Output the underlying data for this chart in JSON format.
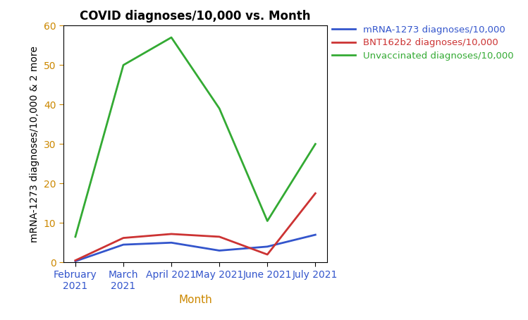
{
  "title": "COVID diagnoses/10,000 vs. Month",
  "xlabel": "Month",
  "ylabel": "mRNA-1273 diagnoses/10,000 & 2 more",
  "months": [
    "February\n2021",
    "March\n2021",
    "April 2021",
    "May 2021",
    "June 2021",
    "July 2021"
  ],
  "mrna1273": [
    0.3,
    4.5,
    5.0,
    3.0,
    4.0,
    7.0
  ],
  "bnt162b2": [
    0.5,
    6.2,
    7.2,
    6.5,
    2.0,
    17.5
  ],
  "unvaccinated": [
    6.5,
    50.0,
    57.0,
    39.0,
    10.5,
    30.0
  ],
  "mrna_color": "#3355CC",
  "bnt_color": "#CC3333",
  "unvax_color": "#33AA33",
  "legend_text_colors": [
    "#3355CC",
    "#CC3333",
    "#33AA33"
  ],
  "ylim": [
    0,
    60
  ],
  "yticks": [
    0,
    10,
    20,
    30,
    40,
    50,
    60
  ],
  "legend_labels": [
    "mRNA-1273 diagnoses/10,000",
    "BNT162b2 diagnoses/10,000",
    "Unvaccinated diagnoses/10,000"
  ],
  "title_fontsize": 12,
  "axis_label_fontsize": 11,
  "tick_fontsize": 10,
  "legend_fontsize": 9.5,
  "linewidth": 2.0,
  "xlabel_color": "#CC8800",
  "ylabel_color": "#000000",
  "xtick_color": "#3355CC",
  "ytick_color": "#CC8800"
}
